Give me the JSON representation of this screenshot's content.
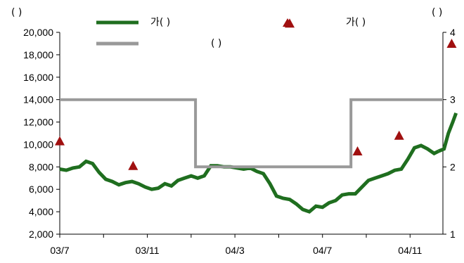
{
  "chart_data": {
    "type": "line",
    "left_axis_label": "( )",
    "right_axis_label": "( )",
    "x_tick_labels": [
      "03/7",
      "03/11",
      "04/3",
      "04/7",
      "04/11"
    ],
    "x_range": [
      0,
      17.5
    ],
    "left_axis": {
      "range": [
        2000,
        20000
      ],
      "ticks": [
        2000,
        4000,
        6000,
        8000,
        10000,
        12000,
        14000,
        16000,
        18000,
        20000
      ],
      "tick_labels": [
        "2,000",
        "4,000",
        "6,000",
        "8,000",
        "10,000",
        "12,000",
        "14,000",
        "16,000",
        "18,000",
        "20,000"
      ]
    },
    "right_axis": {
      "range": [
        1,
        4
      ],
      "ticks": [
        1,
        2,
        3,
        4
      ],
      "tick_labels": [
        "1",
        "2",
        "3",
        "4"
      ]
    },
    "legend": [
      {
        "name": "가( )",
        "style": "line",
        "color": "#1f6e1f"
      },
      {
        "name": "( )",
        "style": "line",
        "color": "#999999"
      },
      {
        "name": "가( )",
        "style": "triangle",
        "color": "#a01010"
      }
    ],
    "series": [
      {
        "style": "line",
        "axis": "left",
        "color": "#1f6e1f",
        "x": [
          0,
          0.3,
          0.6,
          0.9,
          1.2,
          1.5,
          1.8,
          2.1,
          2.4,
          2.7,
          3.0,
          3.3,
          3.6,
          3.9,
          4.2,
          4.5,
          4.8,
          5.1,
          5.4,
          5.7,
          6.0,
          6.3,
          6.6,
          6.9,
          7.2,
          7.5,
          7.8,
          8.1,
          8.4,
          8.7,
          9.0,
          9.3,
          9.6,
          9.9,
          10.2,
          10.5,
          10.8,
          11.1,
          11.4,
          11.7,
          12.0,
          12.3,
          12.6,
          12.9,
          13.2,
          13.5,
          13.8,
          14.1,
          14.4,
          14.7,
          15.0,
          15.3,
          15.6,
          15.9,
          16.2,
          16.5,
          16.8,
          17.1,
          17.3
        ],
        "values": [
          7800,
          7700,
          7900,
          8000,
          8500,
          8300,
          7500,
          6900,
          6700,
          6400,
          6600,
          6700,
          6500,
          6200,
          6000,
          6100,
          6500,
          6300,
          6800,
          7000,
          7200,
          7000,
          7200,
          8100,
          8100,
          8000,
          8000,
          7900,
          7800,
          7900,
          7600,
          7400,
          6500,
          5400,
          5200,
          5100,
          4700,
          4200,
          4000,
          4500,
          4400,
          4800,
          5000,
          5500,
          5600,
          5600,
          6200,
          6800,
          7000,
          7200,
          7400,
          7700,
          7800,
          8700,
          9700,
          9900,
          9600,
          9200,
          9400
        ]
      },
      {
        "style": "line",
        "axis": "left",
        "color": "#1f6e1f",
        "x": [
          17.3,
          17.55,
          17.75,
          17.95,
          18.1
        ],
        "values": [
          9400,
          9600,
          11000,
          12000,
          12800
        ]
      },
      {
        "style": "step",
        "axis": "right",
        "color": "#999999",
        "x": [
          0,
          6.2,
          6.2,
          13.3,
          13.3,
          17.5
        ],
        "values": [
          3,
          3,
          2,
          2,
          3,
          3
        ]
      },
      {
        "style": "triangle",
        "axis": "left",
        "color": "#a01010",
        "x": [
          0,
          3.35,
          10.5,
          13.6,
          15.5,
          17.9
        ],
        "values": [
          10300,
          8100,
          20800,
          9400,
          10800,
          19000
        ]
      }
    ]
  }
}
